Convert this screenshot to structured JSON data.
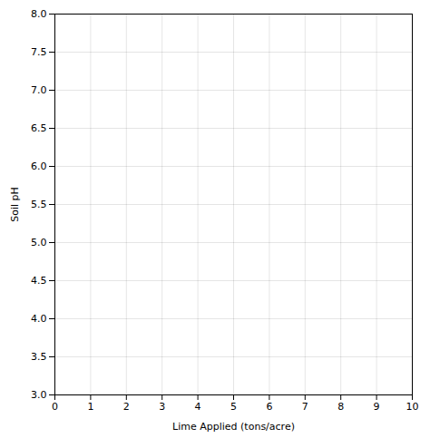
{
  "chart_data": {
    "type": "scatter",
    "xlabel": "Lime Applied (tons/acre)",
    "ylabel": "Soil pH",
    "x": [],
    "values": [],
    "xlim": [
      0,
      10
    ],
    "ylim": [
      3.0,
      8.0
    ],
    "xticks": [
      0,
      1,
      2,
      3,
      4,
      5,
      6,
      7,
      8,
      9,
      10
    ],
    "yticks": [
      {
        "value": 3.0,
        "label": "3.0"
      },
      3.5,
      {
        "value": 4.0,
        "label": "4.0"
      },
      4.5,
      {
        "value": 5.0,
        "label": "5.0"
      },
      5.5,
      {
        "value": 6.0,
        "label": "6.0"
      },
      6.5,
      {
        "value": 7.0,
        "label": "7.0"
      },
      7.5,
      {
        "value": 8.0,
        "label": "8.0"
      }
    ],
    "grid": true
  }
}
